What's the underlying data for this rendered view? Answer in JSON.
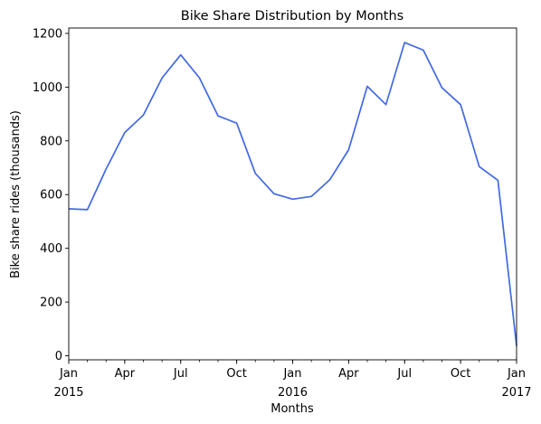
{
  "chart_data": {
    "type": "line",
    "title": "Bike Share Distribution by Months",
    "xlabel": "Months",
    "ylabel": "Bike share rides (thousands)",
    "ylim": [
      -15,
      1220
    ],
    "xlim": [
      "2015-01",
      "2017-01"
    ],
    "grid": false,
    "legend": "none",
    "color": "#4169e1",
    "series": [
      {
        "x": [
          "2015-01",
          "2015-02",
          "2015-03",
          "2015-04",
          "2015-05",
          "2015-06",
          "2015-07",
          "2015-08",
          "2015-09",
          "2015-10",
          "2015-11",
          "2015-12",
          "2016-01",
          "2016-02",
          "2016-03",
          "2016-04",
          "2016-05",
          "2016-06",
          "2016-07",
          "2016-08",
          "2016-09",
          "2016-10",
          "2016-11",
          "2016-12",
          "2017-01"
        ],
        "values": [
          547,
          544,
          695,
          831,
          896,
          1034,
          1120,
          1035,
          893,
          866,
          679,
          603,
          583,
          593,
          656,
          767,
          1003,
          935,
          1166,
          1138,
          998,
          935,
          704,
          653,
          37
        ]
      }
    ],
    "y_ticks": [
      {
        "value": 0,
        "label": "0"
      },
      {
        "value": 200,
        "label": "200"
      },
      {
        "value": 400,
        "label": "400"
      },
      {
        "value": 600,
        "label": "600"
      },
      {
        "value": 800,
        "label": "800"
      },
      {
        "value": 1000,
        "label": "1000"
      },
      {
        "value": 1200,
        "label": "1200"
      }
    ],
    "x_major_ticks": [
      {
        "x": "2015-01",
        "label": "Jan",
        "year": "2015"
      },
      {
        "x": "2015-04",
        "label": "Apr",
        "year": ""
      },
      {
        "x": "2015-07",
        "label": "Jul",
        "year": ""
      },
      {
        "x": "2015-10",
        "label": "Oct",
        "year": ""
      },
      {
        "x": "2016-01",
        "label": "Jan",
        "year": "2016"
      },
      {
        "x": "2016-04",
        "label": "Apr",
        "year": ""
      },
      {
        "x": "2016-07",
        "label": "Jul",
        "year": ""
      },
      {
        "x": "2016-10",
        "label": "Oct",
        "year": ""
      },
      {
        "x": "2017-01",
        "label": "Jan",
        "year": "2017"
      }
    ]
  }
}
